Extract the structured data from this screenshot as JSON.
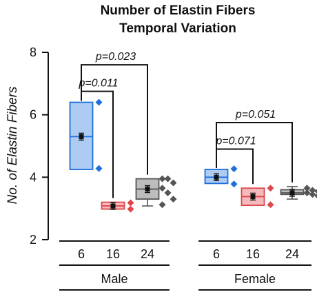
{
  "chart_data": {
    "type": "box",
    "title": [
      "Number of Elastin Fibers",
      "Temporal Variation"
    ],
    "ylabel": "No. of Elastin Fibers",
    "ylim": [
      2,
      8
    ],
    "yticks": [
      2,
      4,
      6,
      8
    ],
    "groups": [
      {
        "name": "Male",
        "boxes": [
          {
            "category": "6",
            "color": "#1e6fd9",
            "fill": "#aecbf2",
            "q1": 4.25,
            "q3": 6.4,
            "median": 5.3,
            "mean": 5.3,
            "whisker_low": 4.25,
            "whisker_high": 6.4,
            "points": [
              6.4,
              4.28
            ]
          },
          {
            "category": "16",
            "color": "#e0464b",
            "fill": "#f4b9bb",
            "q1": 2.98,
            "q3": 3.2,
            "median": 3.08,
            "mean": 3.08,
            "whisker_low": 2.98,
            "whisker_high": 3.2,
            "points": [
              3.18,
              2.98
            ]
          },
          {
            "category": "24",
            "color": "#555555",
            "fill": "#bdbdbd",
            "q1": 3.3,
            "q3": 3.95,
            "median": 3.62,
            "mean": 3.62,
            "whisker_low": 3.08,
            "whisker_high": 3.95,
            "points": [
              3.95,
              3.95,
              3.82,
              3.65,
              3.5,
              3.3,
              3.12
            ]
          }
        ]
      },
      {
        "name": "Female",
        "boxes": [
          {
            "category": "6",
            "color": "#1e6fd9",
            "fill": "#aecbf2",
            "q1": 3.8,
            "q3": 4.25,
            "median": 4.0,
            "mean": 4.0,
            "whisker_low": 3.8,
            "whisker_high": 4.25,
            "points": [
              4.27,
              3.78
            ]
          },
          {
            "category": "16",
            "color": "#e0464b",
            "fill": "#f4b9bb",
            "q1": 3.1,
            "q3": 3.65,
            "median": 3.38,
            "mean": 3.38,
            "whisker_low": 3.1,
            "whisker_high": 3.65,
            "points": [
              3.65,
              3.12
            ]
          },
          {
            "category": "24",
            "color": "#555555",
            "fill": "#bdbdbd",
            "q1": 3.45,
            "q3": 3.6,
            "median": 3.5,
            "mean": 3.5,
            "whisker_low": 3.3,
            "whisker_high": 3.7,
            "points": [
              3.65,
              3.58,
              3.55,
              3.5,
              3.45,
              3.4
            ]
          }
        ]
      }
    ],
    "comparisons": [
      {
        "group": "Male",
        "from": "6",
        "to": "16",
        "label": "p=0.011",
        "y": 6.75
      },
      {
        "group": "Male",
        "from": "6",
        "to": "24",
        "label": "p=0.023",
        "y": 7.6
      },
      {
        "group": "Female",
        "from": "6",
        "to": "16",
        "label": "p=0.071",
        "y": 4.9
      },
      {
        "group": "Female",
        "from": "6",
        "to": "24",
        "label": "p=0.051",
        "y": 5.75
      }
    ]
  }
}
